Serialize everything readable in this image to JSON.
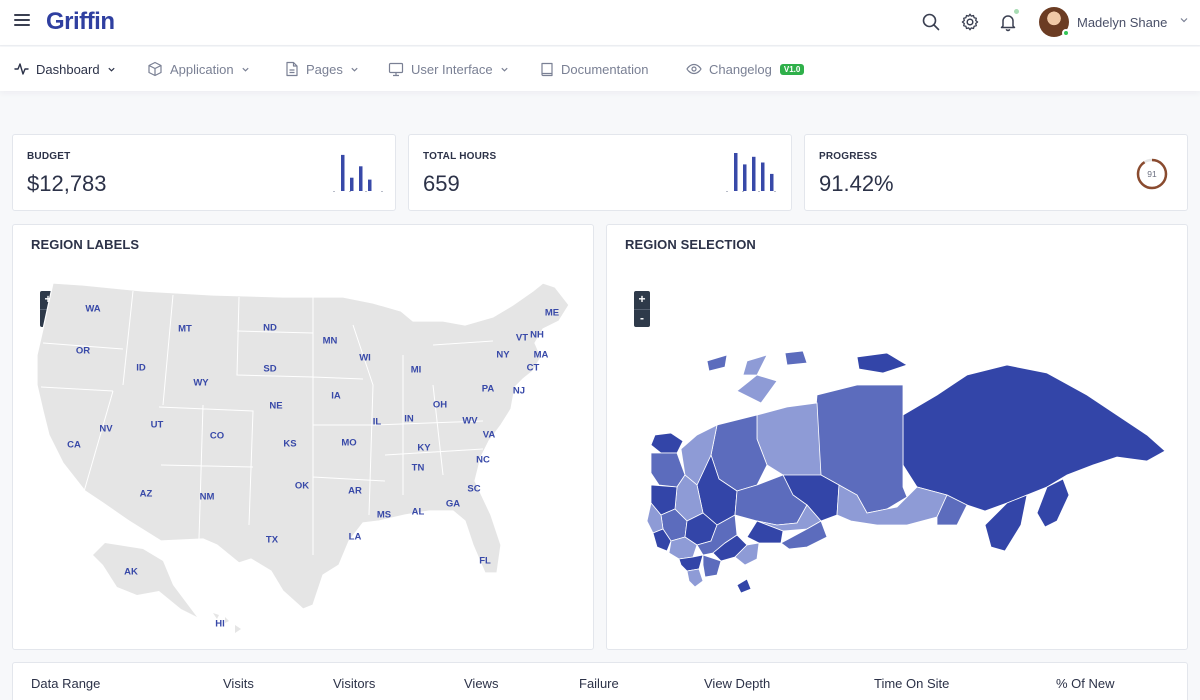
{
  "app": {
    "brand": "Griffin"
  },
  "user": {
    "name": "Madelyn Shane"
  },
  "nav": [
    {
      "label": "Dashboard",
      "icon": "activity-icon",
      "has_menu": true,
      "active": true
    },
    {
      "label": "Application",
      "icon": "box-icon",
      "has_menu": true
    },
    {
      "label": "Pages",
      "icon": "file-icon",
      "has_menu": true
    },
    {
      "label": "User Interface",
      "icon": "monitor-icon",
      "has_menu": true
    },
    {
      "label": "Documentation",
      "icon": "book-icon",
      "has_menu": false
    },
    {
      "label": "Changelog",
      "icon": "eye-icon",
      "has_menu": false,
      "badge": "V1.0"
    }
  ],
  "stats": [
    {
      "label": "BUDGET",
      "value": "$12,783",
      "spark": [
        38,
        14,
        26,
        12
      ]
    },
    {
      "label": "TOTAL HOURS",
      "value": "659",
      "spark": [
        40,
        28,
        36,
        30,
        18
      ]
    },
    {
      "label": "PROGRESS",
      "value": "91.42%",
      "progress": 91,
      "progress_label": "91"
    }
  ],
  "maps": {
    "usa": {
      "title": "REGION LABELS",
      "zoom_in": "+",
      "zoom_out": "-",
      "labels": [
        "WA",
        "MT",
        "ND",
        "MN",
        "OR",
        "ID",
        "WY",
        "SD",
        "WI",
        "MI",
        "NY",
        "ME",
        "VT",
        "NH",
        "MA",
        "CT",
        "PA",
        "NJ",
        "NE",
        "IA",
        "OH",
        "IL",
        "IN",
        "WV",
        "VA",
        "NV",
        "UT",
        "CO",
        "KS",
        "MO",
        "KY",
        "CA",
        "TN",
        "NC",
        "OK",
        "AR",
        "SC",
        "AZ",
        "NM",
        "MS",
        "AL",
        "GA",
        "TX",
        "LA",
        "FL",
        "AK",
        "HI"
      ]
    },
    "russia": {
      "title": "REGION SELECTION",
      "zoom_in": "+",
      "zoom_out": "-"
    }
  },
  "table": {
    "columns": [
      "Data Range",
      "Visits",
      "Visitors",
      "Views",
      "Failure",
      "View Depth",
      "Time On Site",
      "% Of New"
    ]
  },
  "colors": {
    "accent": "#3849a8",
    "map_land": "#e5e5e5",
    "region_dark": "#3345a8",
    "region_mid": "#5c6cbd",
    "region_light": "#8e9bd6",
    "success": "#2fb04a"
  }
}
